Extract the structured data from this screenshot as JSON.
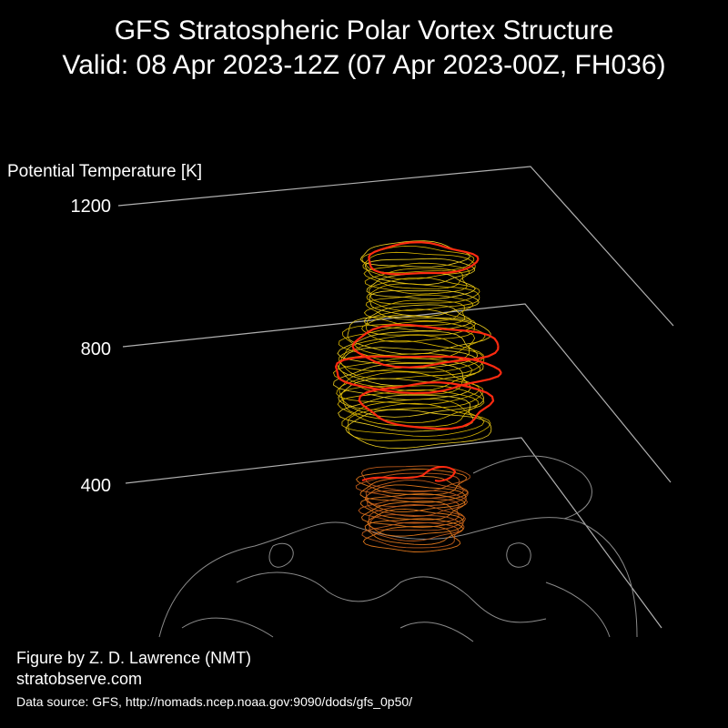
{
  "figure": {
    "title": "GFS Stratospheric Polar Vortex Structure",
    "subtitle": "Valid: 08 Apr 2023-12Z  (07 Apr 2023-00Z, FH036)",
    "axis_label": "Potential Temperature [K]",
    "ticks": [
      1200,
      800,
      400
    ],
    "credit": "Figure by Z. D. Lawrence (NMT)",
    "website": "stratobserve.com",
    "source": "Data source: GFS, http://nomads.ncep.noaa.gov:9090/dods/gfs_0p50/"
  }
}
